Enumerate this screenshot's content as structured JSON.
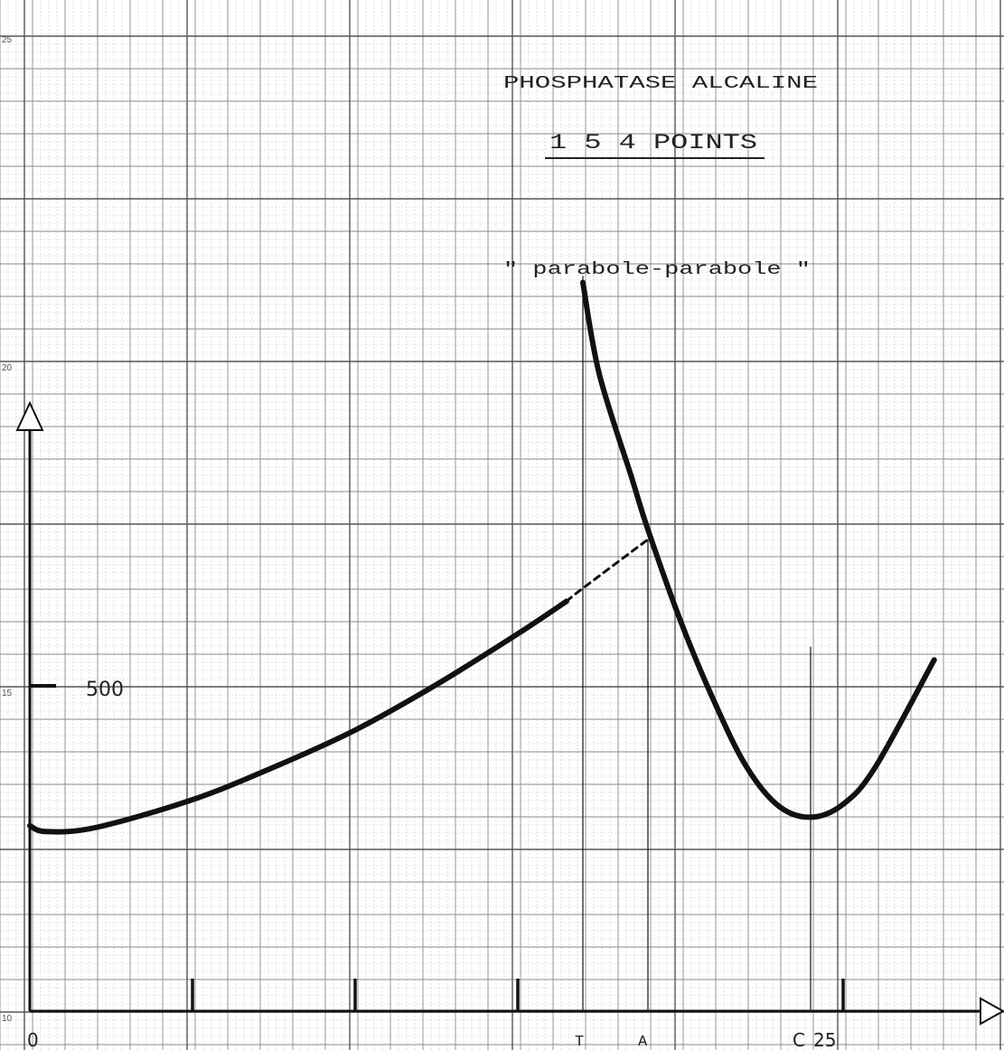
{
  "chart_data": {
    "type": "line",
    "title": "PHOSPHATASE ALCALINE",
    "subtitle": "1 5 4 POINTS",
    "annotation": "\" parabole-parabole \"",
    "y_marker_label": "500",
    "x_labels": {
      "origin": "0",
      "t": "T",
      "a": "A",
      "c": "C",
      "c_value": "25"
    },
    "paper_margin_labels": [
      "25",
      "20",
      "15",
      "10"
    ],
    "x_tick_values": [
      5,
      10,
      15,
      25
    ],
    "y_marker_value": 500,
    "special_x": {
      "T": 17,
      "A": 19,
      "C": 24
    },
    "axis_ranges": {
      "x": [
        0,
        29.5
      ],
      "y": [
        0,
        1240
      ]
    },
    "grid": true,
    "series": [
      {
        "values": [
          [
            0,
            285
          ],
          [
            0.5,
            276
          ],
          [
            2,
            282
          ],
          [
            5,
            325
          ],
          [
            7.5,
            375
          ],
          [
            10,
            432
          ],
          [
            12.5,
            502
          ],
          [
            15,
            580
          ],
          [
            16.5,
            630
          ]
        ]
      },
      {
        "style": "dashed",
        "values": [
          [
            16.5,
            630
          ],
          [
            17,
            650
          ],
          [
            19,
            725
          ]
        ]
      },
      {
        "values": [
          [
            17,
            1120
          ],
          [
            17.5,
            980
          ],
          [
            18.5,
            820
          ],
          [
            19,
            740
          ],
          [
            20,
            600
          ],
          [
            21,
            480
          ],
          [
            22,
            378
          ],
          [
            23,
            316
          ],
          [
            24,
            298
          ],
          [
            25,
            318
          ],
          [
            26,
            376
          ],
          [
            27.8,
            540
          ]
        ]
      }
    ]
  }
}
